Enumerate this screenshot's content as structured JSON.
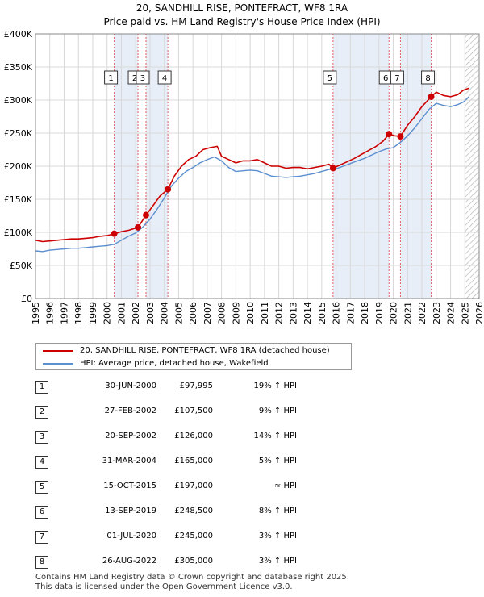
{
  "title": {
    "line1": "20, SANDHILL RISE, PONTEFRACT, WF8 1RA",
    "line2": "Price paid vs. HM Land Registry's House Price Index (HPI)"
  },
  "legend": {
    "red_label": "20, SANDHILL RISE, PONTEFRACT, WF8 1RA (detached house)",
    "blue_label": "HPI: Average price, detached house, Wakefield"
  },
  "colors": {
    "price_line": "#cc0000",
    "hpi_line": "#5b8fd0",
    "shade": "#e8eef8",
    "marker_line": "#cc0000"
  },
  "transactions": [
    {
      "num": "1",
      "date": "30-JUN-2000",
      "price": "£97,995",
      "hpi": "19% ↑ HPI"
    },
    {
      "num": "2",
      "date": "27-FEB-2002",
      "price": "£107,500",
      "hpi": "9% ↑ HPI"
    },
    {
      "num": "3",
      "date": "20-SEP-2002",
      "price": "£126,000",
      "hpi": "14% ↑ HPI"
    },
    {
      "num": "4",
      "date": "31-MAR-2004",
      "price": "£165,000",
      "hpi": "5% ↑ HPI"
    },
    {
      "num": "5",
      "date": "15-OCT-2015",
      "price": "£197,000",
      "hpi": "≈ HPI"
    },
    {
      "num": "6",
      "date": "13-SEP-2019",
      "price": "£248,500",
      "hpi": "8% ↑ HPI"
    },
    {
      "num": "7",
      "date": "01-JUL-2020",
      "price": "£245,000",
      "hpi": "3% ↑ HPI"
    },
    {
      "num": "8",
      "date": "26-AUG-2022",
      "price": "£305,000",
      "hpi": "3% ↑ HPI"
    }
  ],
  "footer": {
    "line1": "Contains HM Land Registry data © Crown copyright and database right 2025.",
    "line2": "This data is licensed under the Open Government Licence v3.0."
  },
  "chart_data": {
    "type": "line",
    "title": "20, SANDHILL RISE, PONTEFRACT, WF8 1RA",
    "subtitle": "Price paid vs. HM Land Registry's House Price Index (HPI)",
    "xlabel": "",
    "ylabel": "",
    "xlim": [
      1995,
      2026
    ],
    "ylim": [
      0,
      400000
    ],
    "x_ticks": [
      "1995",
      "1996",
      "1997",
      "1998",
      "1999",
      "2000",
      "2001",
      "2002",
      "2003",
      "2004",
      "2005",
      "2006",
      "2007",
      "2008",
      "2009",
      "2010",
      "2011",
      "2012",
      "2013",
      "2014",
      "2015",
      "2016",
      "2017",
      "2018",
      "2019",
      "2020",
      "2021",
      "2022",
      "2023",
      "2024",
      "2025",
      "2026"
    ],
    "y_ticks": [
      {
        "value": 0,
        "label": "£0"
      },
      {
        "value": 50000,
        "label": "£50K"
      },
      {
        "value": 100000,
        "label": "£100K"
      },
      {
        "value": 150000,
        "label": "£150K"
      },
      {
        "value": 200000,
        "label": "£200K"
      },
      {
        "value": 250000,
        "label": "£250K"
      },
      {
        "value": 300000,
        "label": "£300K"
      },
      {
        "value": 350000,
        "label": "£350K"
      },
      {
        "value": 400000,
        "label": "£400K"
      }
    ],
    "grid": true,
    "legend_position": "below",
    "future_hatch_from": 2025.0,
    "shaded_periods": [
      [
        2000.5,
        2002.16
      ],
      [
        2002.72,
        2004.25
      ],
      [
        2015.79,
        2019.7
      ],
      [
        2020.5,
        2022.65
      ]
    ],
    "series": [
      {
        "name": "20, SANDHILL RISE, PONTEFRACT, WF8 1RA (detached house)",
        "color": "#cc0000",
        "x": [
          1995.0,
          1995.5,
          1996.0,
          1996.5,
          1997.0,
          1997.5,
          1998.0,
          1998.5,
          1999.0,
          1999.5,
          2000.0,
          2000.5,
          2001.0,
          2001.5,
          2002.16,
          2002.72,
          2003.2,
          2003.7,
          2004.25,
          2004.7,
          2005.2,
          2005.7,
          2006.2,
          2006.7,
          2007.2,
          2007.7,
          2008.0,
          2008.5,
          2009.0,
          2009.5,
          2010.0,
          2010.5,
          2011.0,
          2011.5,
          2012.0,
          2012.5,
          2013.0,
          2013.5,
          2014.0,
          2014.5,
          2015.0,
          2015.5,
          2015.79,
          2016.3,
          2016.8,
          2017.3,
          2017.8,
          2018.3,
          2018.8,
          2019.3,
          2019.7,
          2020.1,
          2020.5,
          2021.0,
          2021.5,
          2022.0,
          2022.65,
          2023.0,
          2023.5,
          2024.0,
          2024.5,
          2024.9,
          2025.3
        ],
        "y": [
          88000,
          86000,
          87000,
          88000,
          89000,
          90000,
          90000,
          91000,
          92000,
          94000,
          95000,
          97995,
          101000,
          103000,
          107500,
          126000,
          140000,
          155000,
          165000,
          185000,
          200000,
          210000,
          215000,
          225000,
          228000,
          230000,
          215000,
          210000,
          205000,
          208000,
          208000,
          210000,
          205000,
          200000,
          200000,
          197000,
          198000,
          198000,
          196000,
          198000,
          200000,
          203000,
          197000,
          202000,
          207000,
          212000,
          218000,
          224000,
          230000,
          238000,
          248500,
          246000,
          245000,
          262000,
          275000,
          290000,
          305000,
          312000,
          307000,
          305000,
          308000,
          315000,
          318000
        ]
      },
      {
        "name": "HPI: Average price, detached house, Wakefield",
        "color": "#5b8fd0",
        "x": [
          1995.0,
          1995.5,
          1996.0,
          1996.5,
          1997.0,
          1997.5,
          1998.0,
          1998.5,
          1999.0,
          1999.5,
          2000.0,
          2000.5,
          2001.0,
          2001.5,
          2002.0,
          2002.5,
          2003.0,
          2003.5,
          2004.0,
          2004.5,
          2005.0,
          2005.5,
          2006.0,
          2006.5,
          2007.0,
          2007.5,
          2008.0,
          2008.5,
          2009.0,
          2009.5,
          2010.0,
          2010.5,
          2011.0,
          2011.5,
          2012.0,
          2012.5,
          2013.0,
          2013.5,
          2014.0,
          2014.5,
          2015.0,
          2015.5,
          2016.0,
          2016.5,
          2017.0,
          2017.5,
          2018.0,
          2018.5,
          2019.0,
          2019.5,
          2020.0,
          2020.5,
          2021.0,
          2021.5,
          2022.0,
          2022.5,
          2023.0,
          2023.5,
          2024.0,
          2024.5,
          2024.9,
          2025.3
        ],
        "y": [
          72000,
          71000,
          73000,
          74000,
          75000,
          76000,
          76000,
          77000,
          78000,
          79000,
          80000,
          82000,
          88000,
          94000,
          99000,
          108000,
          120000,
          135000,
          152000,
          170000,
          182000,
          192000,
          198000,
          205000,
          210000,
          214000,
          208000,
          198000,
          192000,
          193000,
          194000,
          193000,
          189000,
          185000,
          184000,
          183000,
          184000,
          185000,
          187000,
          189000,
          192000,
          195000,
          196000,
          200000,
          204000,
          208000,
          212000,
          217000,
          222000,
          226000,
          228000,
          236000,
          246000,
          258000,
          272000,
          286000,
          295000,
          292000,
          290000,
          293000,
          297000,
          305000
        ]
      }
    ],
    "markers": [
      {
        "label": "1",
        "x": 2000.5,
        "y": 97995
      },
      {
        "label": "2",
        "x": 2002.16,
        "y": 107500
      },
      {
        "label": "3",
        "x": 2002.72,
        "y": 126000
      },
      {
        "label": "4",
        "x": 2004.25,
        "y": 165000
      },
      {
        "label": "5",
        "x": 2015.79,
        "y": 197000
      },
      {
        "label": "6",
        "x": 2019.7,
        "y": 248500
      },
      {
        "label": "7",
        "x": 2020.5,
        "y": 245000
      },
      {
        "label": "8",
        "x": 2022.65,
        "y": 305000
      }
    ]
  }
}
